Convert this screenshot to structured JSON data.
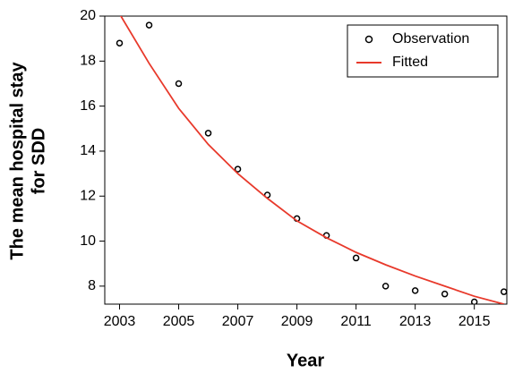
{
  "chart_data": {
    "type": "line",
    "xlabel": "Year",
    "ylabel": [
      "The mean hospital stay",
      "for SDD"
    ],
    "x": [
      2003,
      2004,
      2005,
      2006,
      2007,
      2008,
      2009,
      2010,
      2011,
      2012,
      2013,
      2014,
      2015,
      2016
    ],
    "series": [
      {
        "name": "Observation",
        "color": "#000000",
        "style": "markers",
        "values": [
          18.8,
          19.6,
          17.0,
          14.8,
          13.2,
          12.05,
          11.0,
          10.25,
          9.25,
          8.0,
          7.8,
          7.65,
          7.3,
          7.75
        ]
      },
      {
        "name": "Fitted",
        "color": "#e8392b",
        "style": "line",
        "values": [
          20.1,
          17.9,
          15.9,
          14.3,
          13.0,
          11.9,
          10.9,
          10.15,
          9.5,
          8.95,
          8.45,
          8.0,
          7.55,
          7.2
        ]
      }
    ],
    "xlim": [
      2002.5,
      2016.1
    ],
    "xticks": [
      2003,
      2005,
      2007,
      2009,
      2011,
      2013,
      2015
    ],
    "ylim": [
      7.2,
      20
    ],
    "yticks": [
      8,
      10,
      12,
      14,
      16,
      18,
      20
    ],
    "grid": false,
    "legend": "upper right"
  }
}
